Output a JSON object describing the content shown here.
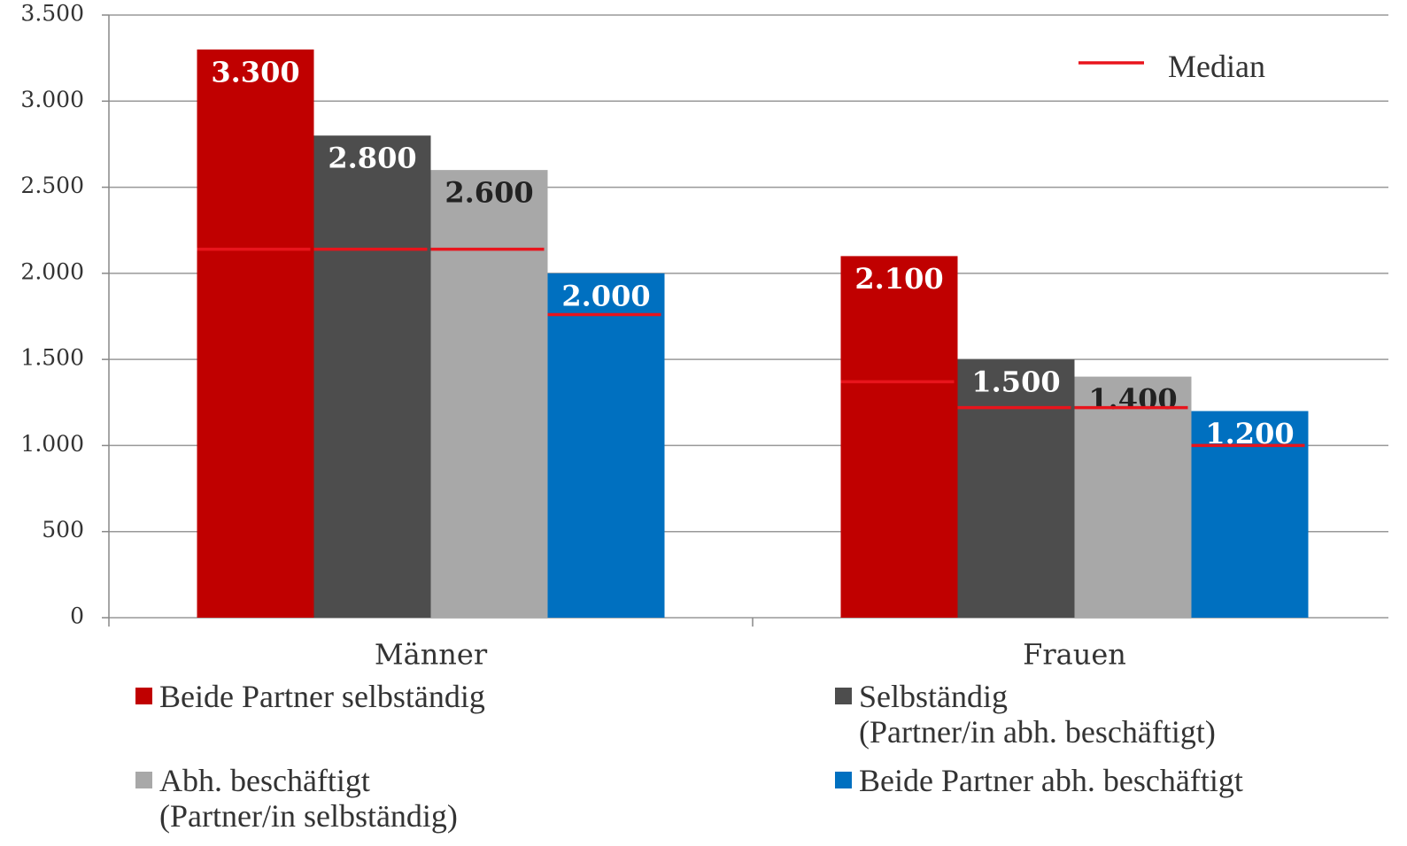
{
  "chart_data": {
    "type": "bar",
    "categories": [
      "Männer",
      "Frauen"
    ],
    "series": [
      {
        "name": "Beide Partner selbständig",
        "color": "#c00000",
        "values": [
          3300,
          2100
        ],
        "value_labels": [
          "3.300",
          "2.100"
        ],
        "medians": [
          2140,
          1370
        ]
      },
      {
        "name": "Selbständig\n(Partner/in abh. beschäftigt)",
        "color": "#4d4d4d",
        "values": [
          2800,
          1500
        ],
        "value_labels": [
          "2.800",
          "1.500"
        ],
        "medians": [
          2140,
          1220
        ]
      },
      {
        "name": "Abh. beschäftigt\n(Partner/in selbständig)",
        "color": "#a8a8a8",
        "values": [
          2600,
          1400
        ],
        "value_labels": [
          "2.600",
          "1.400"
        ],
        "medians": [
          2140,
          1220
        ]
      },
      {
        "name": "Beide Partner abh. beschäftigt",
        "color": "#0070c0",
        "values": [
          2000,
          1200
        ],
        "value_labels": [
          "2.000",
          "1.200"
        ],
        "medians": [
          1760,
          1000
        ]
      }
    ],
    "median_label": "Median",
    "median_color": "#e8141c",
    "ylim": [
      0,
      3500
    ],
    "yticks": [
      0,
      500,
      {
        "value": 1000,
        "label": "1.000"
      },
      {
        "value": 1500,
        "label": "1.500"
      },
      {
        "value": 2000,
        "label": "2.000"
      },
      {
        "value": 2500,
        "label": "2.500"
      },
      {
        "value": 3000,
        "label": "3.000"
      },
      {
        "value": 3500,
        "label": "3.500"
      }
    ],
    "grid": true
  }
}
